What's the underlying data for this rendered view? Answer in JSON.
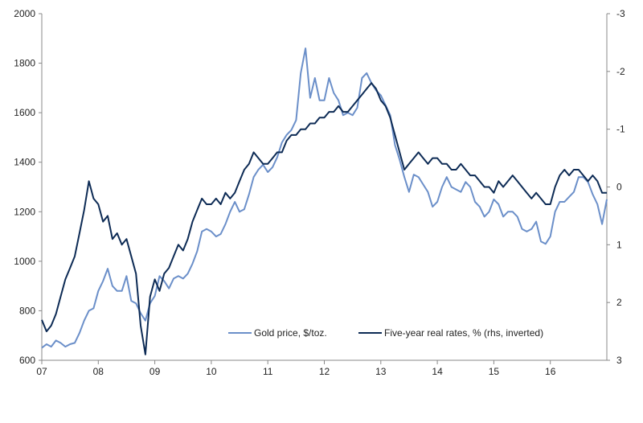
{
  "chart_data": {
    "type": "line",
    "title": "",
    "xlabel": "",
    "ylabel": "",
    "x_ticks": [
      "07",
      "08",
      "09",
      "10",
      "11",
      "12",
      "13",
      "14",
      "15",
      "16"
    ],
    "x_range": [
      2007,
      2017
    ],
    "y_left": {
      "ticks": [
        "600",
        "800",
        "1000",
        "1200",
        "1400",
        "1600",
        "1800",
        "2000"
      ],
      "range": [
        600,
        2000
      ]
    },
    "y_right": {
      "ticks": [
        "-3",
        "-2",
        "-1",
        "0",
        "1",
        "2",
        "3"
      ],
      "range": [
        -3,
        3
      ],
      "inverted": true
    },
    "grid": false,
    "legend_position": "bottom-center",
    "colors": {
      "gold": "#6b8fc9",
      "rates": "#0d2b55"
    },
    "series": [
      {
        "name": "Gold price, $/toz.",
        "axis": "left",
        "frequency": "monthly from Jan 2007",
        "values": [
          650,
          665,
          655,
          680,
          670,
          655,
          665,
          670,
          710,
          760,
          800,
          810,
          880,
          920,
          970,
          900,
          880,
          880,
          940,
          840,
          830,
          790,
          760,
          830,
          860,
          940,
          920,
          890,
          930,
          940,
          930,
          950,
          990,
          1040,
          1120,
          1130,
          1120,
          1100,
          1110,
          1150,
          1200,
          1240,
          1200,
          1210,
          1270,
          1340,
          1370,
          1390,
          1360,
          1380,
          1420,
          1480,
          1510,
          1530,
          1570,
          1760,
          1860,
          1660,
          1740,
          1650,
          1650,
          1740,
          1680,
          1650,
          1590,
          1600,
          1590,
          1620,
          1740,
          1760,
          1720,
          1690,
          1670,
          1630,
          1590,
          1470,
          1410,
          1340,
          1280,
          1350,
          1340,
          1310,
          1280,
          1220,
          1240,
          1300,
          1340,
          1300,
          1290,
          1280,
          1320,
          1300,
          1240,
          1220,
          1180,
          1200,
          1250,
          1230,
          1180,
          1200,
          1200,
          1180,
          1130,
          1120,
          1130,
          1160,
          1080,
          1070,
          1100,
          1200,
          1240,
          1240,
          1260,
          1280,
          1340,
          1340,
          1320,
          1270,
          1230,
          1150,
          1250
        ]
      },
      {
        "name": "Five-year real rates, % (rhs, inverted)",
        "axis": "right",
        "frequency": "monthly from Jan 2007",
        "values": [
          2.3,
          2.5,
          2.4,
          2.2,
          1.9,
          1.6,
          1.4,
          1.2,
          0.8,
          0.4,
          -0.1,
          0.2,
          0.3,
          0.6,
          0.5,
          0.9,
          0.8,
          1.0,
          0.9,
          1.2,
          1.5,
          2.4,
          2.9,
          1.9,
          1.6,
          1.8,
          1.5,
          1.4,
          1.2,
          1.0,
          1.1,
          0.9,
          0.6,
          0.4,
          0.2,
          0.3,
          0.3,
          0.2,
          0.3,
          0.1,
          0.2,
          0.1,
          -0.1,
          -0.3,
          -0.4,
          -0.6,
          -0.5,
          -0.4,
          -0.4,
          -0.5,
          -0.6,
          -0.6,
          -0.8,
          -0.9,
          -0.9,
          -1.0,
          -1.0,
          -1.1,
          -1.1,
          -1.2,
          -1.2,
          -1.3,
          -1.3,
          -1.4,
          -1.3,
          -1.3,
          -1.4,
          -1.5,
          -1.6,
          -1.7,
          -1.8,
          -1.7,
          -1.5,
          -1.4,
          -1.2,
          -0.9,
          -0.6,
          -0.3,
          -0.4,
          -0.5,
          -0.6,
          -0.5,
          -0.4,
          -0.5,
          -0.5,
          -0.4,
          -0.4,
          -0.3,
          -0.3,
          -0.4,
          -0.3,
          -0.2,
          -0.2,
          -0.1,
          0.0,
          0.0,
          0.1,
          -0.1,
          0.0,
          -0.1,
          -0.2,
          -0.1,
          0.0,
          0.1,
          0.2,
          0.1,
          0.2,
          0.3,
          0.3,
          0.0,
          -0.2,
          -0.3,
          -0.2,
          -0.3,
          -0.3,
          -0.2,
          -0.1,
          -0.2,
          -0.1,
          0.1,
          0.1
        ]
      }
    ]
  }
}
